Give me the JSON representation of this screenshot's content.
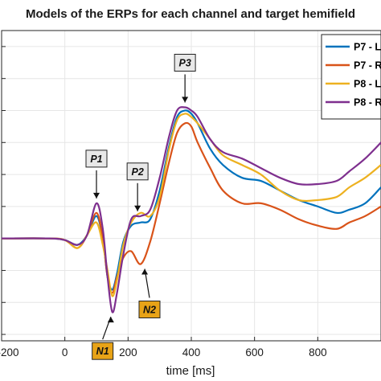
{
  "chart_data": {
    "type": "line",
    "title": "Models of the ERPs for each channel and target hemifield",
    "xlabel": "time [ms]",
    "ylabel": "",
    "xlim": [
      -200,
      1000
    ],
    "ylim": [
      -3.2,
      6.5
    ],
    "grid": true,
    "legend_position": "top-right",
    "xticks": [
      -200,
      0,
      200,
      400,
      600,
      800
    ],
    "xtick_labels": [
      "-200",
      "0",
      "200",
      "400",
      "600",
      "800"
    ],
    "series": [
      {
        "name": "P7 - L",
        "color": "#0072BD",
        "x": [
          -200,
          -50,
          0,
          40,
          70,
          100,
          120,
          135,
          150,
          165,
          185,
          210,
          240,
          270,
          300,
          330,
          355,
          380,
          400,
          420,
          460,
          500,
          560,
          620,
          680,
          740,
          800,
          860,
          900,
          950,
          1000
        ],
        "y": [
          0,
          0,
          -0.05,
          -0.2,
          0.1,
          0.7,
          0,
          -1.2,
          -1.6,
          -1.1,
          -0.1,
          0.4,
          0.5,
          0.6,
          1.5,
          2.9,
          3.8,
          4.0,
          3.9,
          3.6,
          2.8,
          2.3,
          1.9,
          1.8,
          1.5,
          1.2,
          1.0,
          0.8,
          0.9,
          1.1,
          1.6
        ]
      },
      {
        "name": "P7 - R",
        "color": "#D95319",
        "x": [
          -200,
          -50,
          0,
          40,
          70,
          100,
          120,
          135,
          150,
          165,
          185,
          210,
          240,
          270,
          300,
          330,
          355,
          380,
          400,
          420,
          460,
          500,
          560,
          620,
          680,
          740,
          800,
          860,
          900,
          950,
          1000
        ],
        "y": [
          0,
          0,
          -0.05,
          -0.3,
          0.1,
          0.8,
          0,
          -1.2,
          -1.7,
          -1.2,
          -0.6,
          -0.4,
          -0.8,
          -0.1,
          1.1,
          2.4,
          3.3,
          3.6,
          3.5,
          3.0,
          2.2,
          1.5,
          1.1,
          1.1,
          0.9,
          0.6,
          0.4,
          0.3,
          0.5,
          0.7,
          1.0
        ]
      },
      {
        "name": "P8 - L",
        "color": "#EDB120",
        "x": [
          -200,
          -50,
          0,
          40,
          70,
          100,
          120,
          135,
          150,
          165,
          185,
          210,
          240,
          270,
          300,
          330,
          355,
          380,
          400,
          420,
          460,
          500,
          560,
          620,
          680,
          740,
          800,
          860,
          900,
          950,
          1000
        ],
        "y": [
          0,
          0,
          -0.05,
          -0.3,
          0.1,
          0.5,
          -0.2,
          -1.0,
          -1.8,
          -1.3,
          -0.2,
          0.5,
          0.8,
          0.7,
          1.3,
          2.8,
          3.7,
          3.9,
          3.8,
          3.6,
          3.1,
          2.6,
          2.3,
          2.0,
          1.5,
          1.2,
          1.2,
          1.3,
          1.6,
          1.9,
          2.3
        ]
      },
      {
        "name": "P8 - R",
        "color": "#7E2F8E",
        "x": [
          -200,
          -50,
          0,
          40,
          70,
          100,
          120,
          135,
          150,
          165,
          185,
          210,
          240,
          270,
          300,
          330,
          355,
          380,
          400,
          420,
          460,
          500,
          560,
          620,
          680,
          740,
          800,
          860,
          900,
          950,
          1000
        ],
        "y": [
          0,
          0,
          -0.05,
          -0.2,
          0.1,
          1.1,
          0.3,
          -1.2,
          -2.3,
          -1.7,
          -0.5,
          0.6,
          0.7,
          0.9,
          1.9,
          3.2,
          4.0,
          4.1,
          4.0,
          3.8,
          3.1,
          2.7,
          2.5,
          2.2,
          1.9,
          1.7,
          1.7,
          1.8,
          2.1,
          2.5,
          3.0
        ]
      }
    ],
    "annotations": [
      {
        "label": "P1",
        "x": 100,
        "y": 1.1,
        "style": "gray"
      },
      {
        "label": "P2",
        "x": 230,
        "y": 0.7,
        "style": "gray"
      },
      {
        "label": "P3",
        "x": 380,
        "y": 4.1,
        "style": "gray"
      },
      {
        "label": "N1",
        "x": 150,
        "y": -2.3,
        "style": "orange"
      },
      {
        "label": "N2",
        "x": 250,
        "y": -0.8,
        "style": "orange"
      }
    ]
  },
  "colors": {
    "callout_gray": "#e8e8e8",
    "callout_orange": "#E8A317",
    "axis": "#262626",
    "grid": "#e6e6e6"
  }
}
